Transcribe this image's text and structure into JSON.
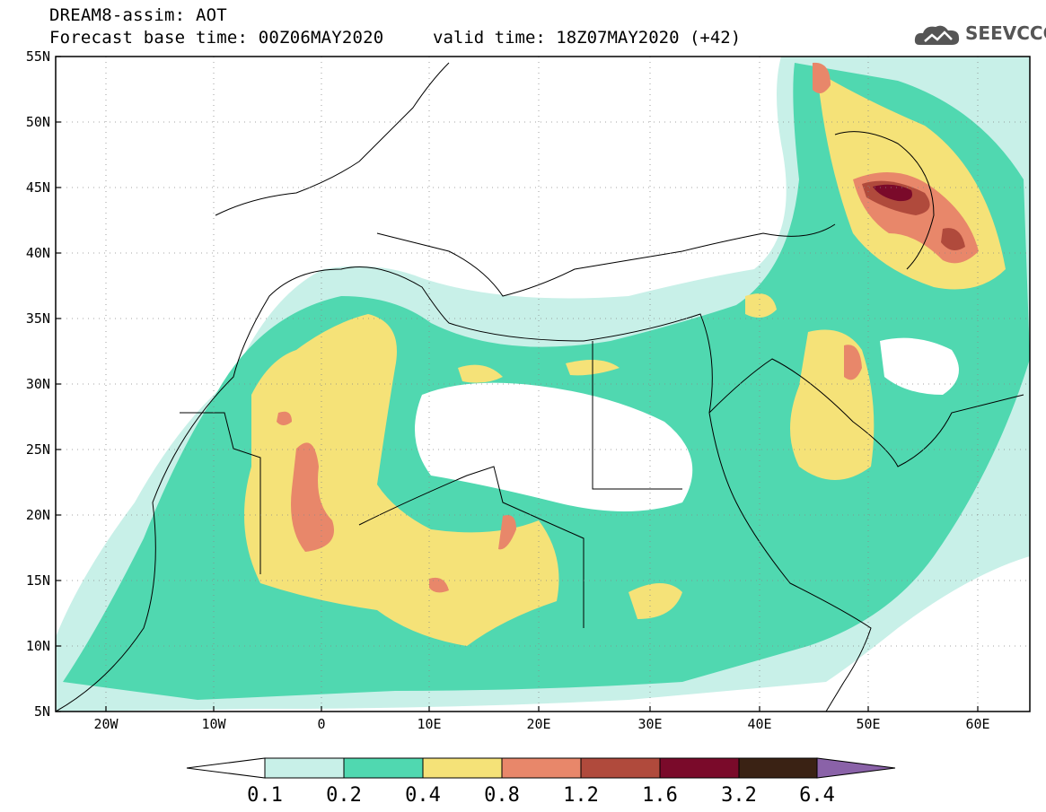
{
  "header": {
    "line1": "DREAM8-assim: AOT",
    "line2": "Forecast base time: 00Z06MAY2020",
    "valid": "valid time: 18Z07MAY2020 (+42)"
  },
  "logo": {
    "text": "SEEVCCC",
    "icon": "cloud-logo-icon"
  },
  "axes": {
    "lat_labels": [
      "55N",
      "50N",
      "45N",
      "40N",
      "35N",
      "30N",
      "25N",
      "20N",
      "15N",
      "10N",
      "5N"
    ],
    "lon_labels": [
      "20W",
      "10W",
      "0",
      "10E",
      "20E",
      "30E",
      "40E",
      "50E",
      "60E"
    ]
  },
  "colorbar": {
    "labels": [
      "0.1",
      "0.2",
      "0.4",
      "0.8",
      "1.2",
      "1.6",
      "3.2",
      "6.4"
    ],
    "colors": [
      "#ffffff",
      "#c8f0e8",
      "#50d8b0",
      "#f5e278",
      "#e8876a",
      "#b04a3c",
      "#7a0a2a",
      "#3a2214",
      "#8a62a8"
    ]
  }
}
